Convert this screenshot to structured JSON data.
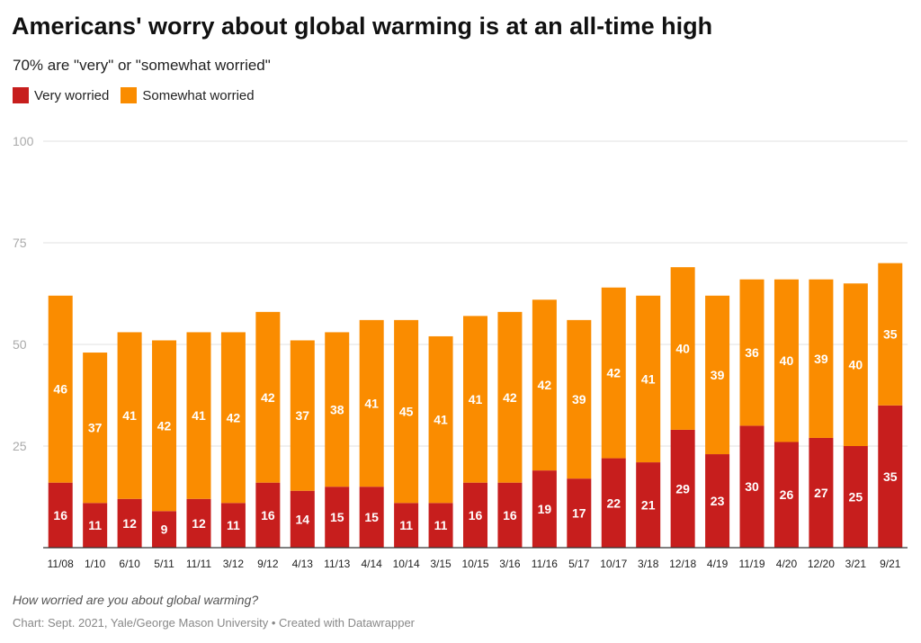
{
  "title": "Americans' worry about global warming is at an all-time high",
  "subtitle": "70% are \"very\" or \"somewhat worried\"",
  "note": "How worried are you about global warming?",
  "source": "Chart: Sept. 2021, Yale/George Mason University • Created with Datawrapper",
  "chart_data": {
    "type": "bar",
    "stacked": true,
    "categories": [
      "11/08",
      "1/10",
      "6/10",
      "5/11",
      "11/11",
      "3/12",
      "9/12",
      "4/13",
      "11/13",
      "4/14",
      "10/14",
      "3/15",
      "10/15",
      "3/16",
      "11/16",
      "5/17",
      "10/17",
      "3/18",
      "12/18",
      "4/19",
      "11/19",
      "4/20",
      "12/20",
      "3/21",
      "9/21"
    ],
    "series": [
      {
        "name": "Very worried",
        "color": "#c71e1d",
        "values": [
          16,
          11,
          12,
          9,
          12,
          11,
          16,
          14,
          15,
          15,
          11,
          11,
          16,
          16,
          19,
          17,
          22,
          21,
          29,
          23,
          30,
          26,
          27,
          25,
          35
        ]
      },
      {
        "name": "Somewhat worried",
        "color": "#fa8c00",
        "values": [
          46,
          37,
          41,
          42,
          41,
          42,
          42,
          37,
          38,
          41,
          45,
          41,
          41,
          42,
          42,
          39,
          42,
          41,
          40,
          39,
          36,
          40,
          39,
          40,
          35
        ]
      }
    ],
    "ylim": [
      0,
      100
    ],
    "yticks": [
      100,
      75,
      50,
      25
    ],
    "grid": true,
    "legend_position": "top-left"
  }
}
